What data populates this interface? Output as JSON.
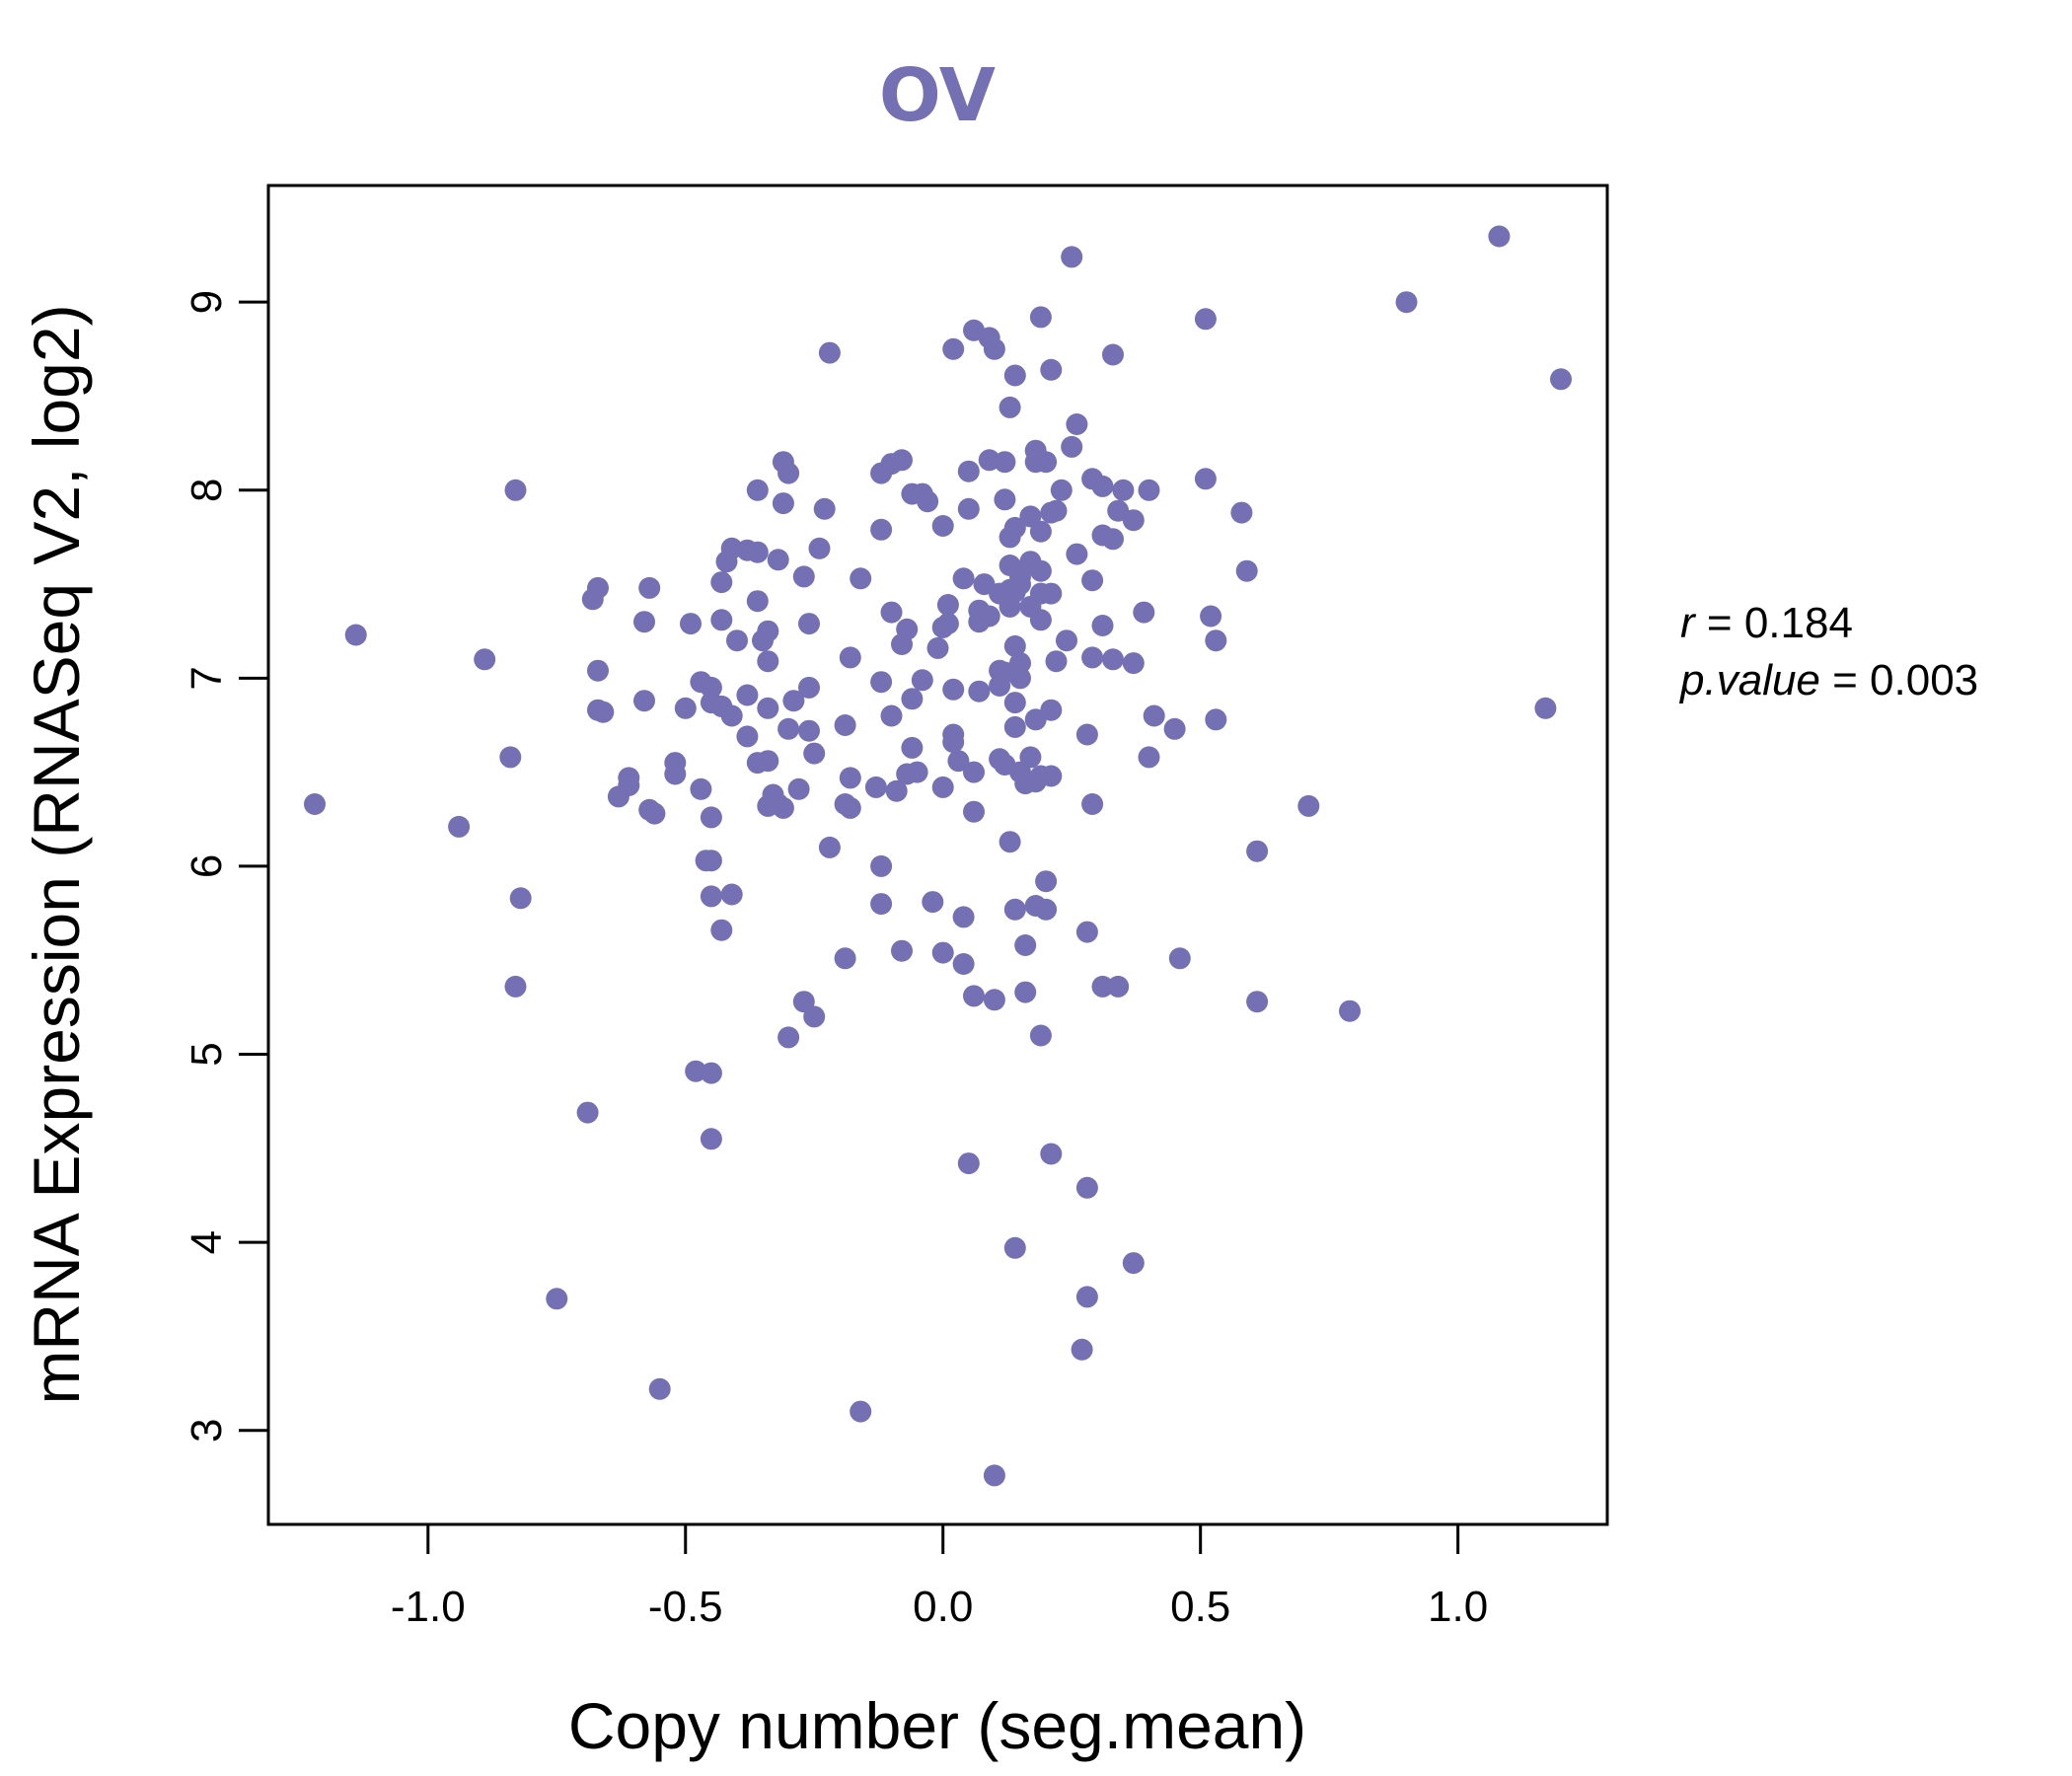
{
  "colors": {
    "point": "#7570b3",
    "title": "#7570b3",
    "axis": "#000000"
  },
  "chart_data": {
    "type": "scatter",
    "title": "OV",
    "xlabel": "Copy number (seg.mean)",
    "ylabel": "mRNA Expression (RNASeq V2, log2)",
    "xlim": [
      -1.31,
      1.29
    ],
    "ylim": [
      2.5,
      9.62
    ],
    "xticks": [
      -1.0,
      -0.5,
      0.0,
      0.5,
      1.0
    ],
    "xtick_labels": [
      "-1.0",
      "-0.5",
      "0.0",
      "0.5",
      "1.0"
    ],
    "yticks": [
      3,
      4,
      5,
      6,
      7,
      8,
      9
    ],
    "ytick_labels": [
      "3",
      "4",
      "5",
      "6",
      "7",
      "8",
      "9"
    ],
    "grid": false,
    "stats": {
      "r_label": "r",
      "r_value": "0.184",
      "p_label": "p.value",
      "p_value": "0.003"
    },
    "points": [
      [
        1.08,
        9.35
      ],
      [
        0.9,
        9.0
      ],
      [
        1.2,
        8.59
      ],
      [
        1.17,
        6.84
      ],
      [
        0.25,
        9.24
      ],
      [
        0.51,
        8.91
      ],
      [
        0.19,
        8.92
      ],
      [
        0.06,
        8.85
      ],
      [
        0.09,
        8.81
      ],
      [
        0.02,
        8.75
      ],
      [
        0.1,
        8.75
      ],
      [
        -0.22,
        8.73
      ],
      [
        0.33,
        8.72
      ],
      [
        0.21,
        8.64
      ],
      [
        0.14,
        8.61
      ],
      [
        0.13,
        8.44
      ],
      [
        0.26,
        8.35
      ],
      [
        0.25,
        8.23
      ],
      [
        0.18,
        8.21
      ],
      [
        -0.31,
        8.15
      ],
      [
        -0.08,
        8.16
      ],
      [
        -0.1,
        8.14
      ],
      [
        0.09,
        8.16
      ],
      [
        0.12,
        8.15
      ],
      [
        0.18,
        8.15
      ],
      [
        0.2,
        8.15
      ],
      [
        -0.12,
        8.09
      ],
      [
        -0.3,
        8.09
      ],
      [
        0.05,
        8.1
      ],
      [
        0.29,
        8.06
      ],
      [
        0.51,
        8.06
      ],
      [
        0.31,
        8.02
      ],
      [
        0.35,
        8.0
      ],
      [
        0.4,
        8.0
      ],
      [
        -0.83,
        8.0
      ],
      [
        -0.36,
        8.0
      ],
      [
        0.23,
        8.0
      ],
      [
        -0.06,
        7.98
      ],
      [
        -0.04,
        7.98
      ],
      [
        -0.03,
        7.94
      ],
      [
        0.12,
        7.95
      ],
      [
        -0.31,
        7.93
      ],
      [
        0.05,
        7.9
      ],
      [
        -0.23,
        7.9
      ],
      [
        0.34,
        7.89
      ],
      [
        0.22,
        7.89
      ],
      [
        0.21,
        7.88
      ],
      [
        0.17,
        7.86
      ],
      [
        0.58,
        7.88
      ],
      [
        0.37,
        7.84
      ],
      [
        0.0,
        7.81
      ],
      [
        0.14,
        7.8
      ],
      [
        -0.12,
        7.79
      ],
      [
        0.19,
        7.78
      ],
      [
        0.13,
        7.75
      ],
      [
        0.31,
        7.76
      ],
      [
        0.33,
        7.74
      ],
      [
        -0.24,
        7.69
      ],
      [
        -0.41,
        7.69
      ],
      [
        -0.38,
        7.68
      ],
      [
        -0.36,
        7.67
      ],
      [
        -0.32,
        7.63
      ],
      [
        -0.42,
        7.62
      ],
      [
        0.26,
        7.66
      ],
      [
        0.13,
        7.6
      ],
      [
        0.17,
        7.62
      ],
      [
        0.19,
        7.57
      ],
      [
        0.59,
        7.57
      ],
      [
        0.15,
        7.54
      ],
      [
        -0.27,
        7.54
      ],
      [
        -0.16,
        7.53
      ],
      [
        0.04,
        7.53
      ],
      [
        0.29,
        7.52
      ],
      [
        -0.43,
        7.51
      ],
      [
        0.08,
        7.5
      ],
      [
        0.15,
        7.5
      ],
      [
        0.13,
        7.47
      ],
      [
        0.14,
        7.46
      ],
      [
        0.11,
        7.45
      ],
      [
        0.19,
        7.45
      ],
      [
        0.21,
        7.45
      ],
      [
        -0.67,
        7.48
      ],
      [
        -0.57,
        7.48
      ],
      [
        -0.68,
        7.42
      ],
      [
        -0.36,
        7.41
      ],
      [
        0.01,
        7.39
      ],
      [
        0.13,
        7.38
      ],
      [
        0.17,
        7.38
      ],
      [
        0.07,
        7.36
      ],
      [
        0.09,
        7.33
      ],
      [
        0.39,
        7.35
      ],
      [
        0.52,
        7.33
      ],
      [
        -0.1,
        7.35
      ],
      [
        -0.58,
        7.3
      ],
      [
        -0.26,
        7.29
      ],
      [
        -0.49,
        7.29
      ],
      [
        -0.43,
        7.31
      ],
      [
        0.01,
        7.29
      ],
      [
        0.07,
        7.3
      ],
      [
        0.19,
        7.31
      ],
      [
        0.31,
        7.28
      ],
      [
        0.0,
        7.27
      ],
      [
        -0.07,
        7.26
      ],
      [
        -0.34,
        7.25
      ],
      [
        -1.14,
        7.23
      ],
      [
        -0.4,
        7.2
      ],
      [
        -0.35,
        7.2
      ],
      [
        0.24,
        7.2
      ],
      [
        0.53,
        7.2
      ],
      [
        -0.08,
        7.18
      ],
      [
        0.14,
        7.17
      ],
      [
        -0.01,
        7.16
      ],
      [
        -0.18,
        7.11
      ],
      [
        0.29,
        7.11
      ],
      [
        0.33,
        7.1
      ],
      [
        0.22,
        7.09
      ],
      [
        -0.34,
        7.09
      ],
      [
        -0.89,
        7.1
      ],
      [
        0.37,
        7.08
      ],
      [
        0.15,
        7.08
      ],
      [
        0.11,
        7.04
      ],
      [
        -0.67,
        7.04
      ],
      [
        0.12,
        7.03
      ],
      [
        0.15,
        7.0
      ],
      [
        -0.04,
        6.99
      ],
      [
        -0.12,
        6.98
      ],
      [
        -0.47,
        6.98
      ],
      [
        0.11,
        6.96
      ],
      [
        -0.26,
        6.95
      ],
      [
        -0.45,
        6.95
      ],
      [
        0.02,
        6.94
      ],
      [
        0.07,
        6.93
      ],
      [
        -0.38,
        6.91
      ],
      [
        -0.06,
        6.89
      ],
      [
        -0.29,
        6.88
      ],
      [
        -0.58,
        6.88
      ],
      [
        0.14,
        6.87
      ],
      [
        -0.45,
        6.87
      ],
      [
        -0.43,
        6.85
      ],
      [
        -0.5,
        6.84
      ],
      [
        -0.34,
        6.84
      ],
      [
        -0.67,
        6.83
      ],
      [
        0.21,
        6.83
      ],
      [
        -0.66,
        6.82
      ],
      [
        0.41,
        6.8
      ],
      [
        -0.1,
        6.8
      ],
      [
        -0.41,
        6.8
      ],
      [
        0.53,
        6.78
      ],
      [
        0.18,
        6.78
      ],
      [
        0.14,
        6.74
      ],
      [
        -0.19,
        6.75
      ],
      [
        -0.3,
        6.73
      ],
      [
        0.45,
        6.73
      ],
      [
        -0.26,
        6.72
      ],
      [
        0.02,
        6.7
      ],
      [
        0.28,
        6.7
      ],
      [
        -0.38,
        6.69
      ],
      [
        0.02,
        6.66
      ],
      [
        -0.06,
        6.63
      ],
      [
        -0.25,
        6.6
      ],
      [
        0.4,
        6.58
      ],
      [
        0.17,
        6.58
      ],
      [
        0.11,
        6.57
      ],
      [
        0.03,
        6.56
      ],
      [
        -0.34,
        6.56
      ],
      [
        -0.36,
        6.55
      ],
      [
        -0.84,
        6.58
      ],
      [
        0.12,
        6.54
      ],
      [
        -0.52,
        6.55
      ],
      [
        0.15,
        6.5
      ],
      [
        0.06,
        6.5
      ],
      [
        -0.05,
        6.5
      ],
      [
        -0.07,
        6.49
      ],
      [
        -0.52,
        6.49
      ],
      [
        0.19,
        6.48
      ],
      [
        0.21,
        6.48
      ],
      [
        0.18,
        6.45
      ],
      [
        0.16,
        6.44
      ],
      [
        -0.61,
        6.47
      ],
      [
        -0.18,
        6.47
      ],
      [
        -0.61,
        6.43
      ],
      [
        -0.13,
        6.42
      ],
      [
        -0.47,
        6.41
      ],
      [
        0.0,
        6.42
      ],
      [
        -0.28,
        6.41
      ],
      [
        -0.63,
        6.37
      ],
      [
        -0.09,
        6.4
      ],
      [
        -0.33,
        6.38
      ],
      [
        -0.32,
        6.33
      ],
      [
        -0.34,
        6.32
      ],
      [
        -0.31,
        6.31
      ],
      [
        -0.19,
        6.33
      ],
      [
        -0.18,
        6.31
      ],
      [
        -0.57,
        6.3
      ],
      [
        -0.56,
        6.28
      ],
      [
        -1.22,
        6.33
      ],
      [
        0.29,
        6.33
      ],
      [
        0.71,
        6.32
      ],
      [
        0.06,
        6.29
      ],
      [
        -0.45,
        6.26
      ],
      [
        -0.94,
        6.21
      ],
      [
        0.13,
        6.13
      ],
      [
        -0.22,
        6.1
      ],
      [
        0.61,
        6.08
      ],
      [
        -0.12,
        6.0
      ],
      [
        -0.46,
        6.03
      ],
      [
        -0.45,
        6.03
      ],
      [
        0.2,
        5.92
      ],
      [
        -0.82,
        5.83
      ],
      [
        -0.41,
        5.85
      ],
      [
        -0.45,
        5.84
      ],
      [
        -0.02,
        5.81
      ],
      [
        -0.12,
        5.8
      ],
      [
        0.18,
        5.79
      ],
      [
        0.14,
        5.77
      ],
      [
        0.2,
        5.77
      ],
      [
        0.04,
        5.73
      ],
      [
        -0.43,
        5.66
      ],
      [
        0.28,
        5.65
      ],
      [
        0.16,
        5.58
      ],
      [
        -0.08,
        5.55
      ],
      [
        0.0,
        5.54
      ],
      [
        -0.19,
        5.51
      ],
      [
        0.46,
        5.51
      ],
      [
        0.04,
        5.48
      ],
      [
        0.31,
        5.36
      ],
      [
        0.34,
        5.36
      ],
      [
        -0.83,
        5.36
      ],
      [
        0.16,
        5.33
      ],
      [
        0.06,
        5.31
      ],
      [
        0.1,
        5.29
      ],
      [
        0.61,
        5.28
      ],
      [
        -0.27,
        5.28
      ],
      [
        0.79,
        5.23
      ],
      [
        -0.25,
        5.2
      ],
      [
        -0.3,
        5.09
      ],
      [
        0.19,
        5.1
      ],
      [
        -0.48,
        4.91
      ],
      [
        -0.45,
        4.9
      ],
      [
        -0.69,
        4.69
      ],
      [
        -0.45,
        4.55
      ],
      [
        0.21,
        4.47
      ],
      [
        0.05,
        4.42
      ],
      [
        0.28,
        4.29
      ],
      [
        0.14,
        3.97
      ],
      [
        0.37,
        3.89
      ],
      [
        0.28,
        3.71
      ],
      [
        -0.75,
        3.7
      ],
      [
        0.27,
        3.43
      ],
      [
        -0.55,
        3.22
      ],
      [
        -0.16,
        3.1
      ],
      [
        0.1,
        2.76
      ]
    ]
  }
}
